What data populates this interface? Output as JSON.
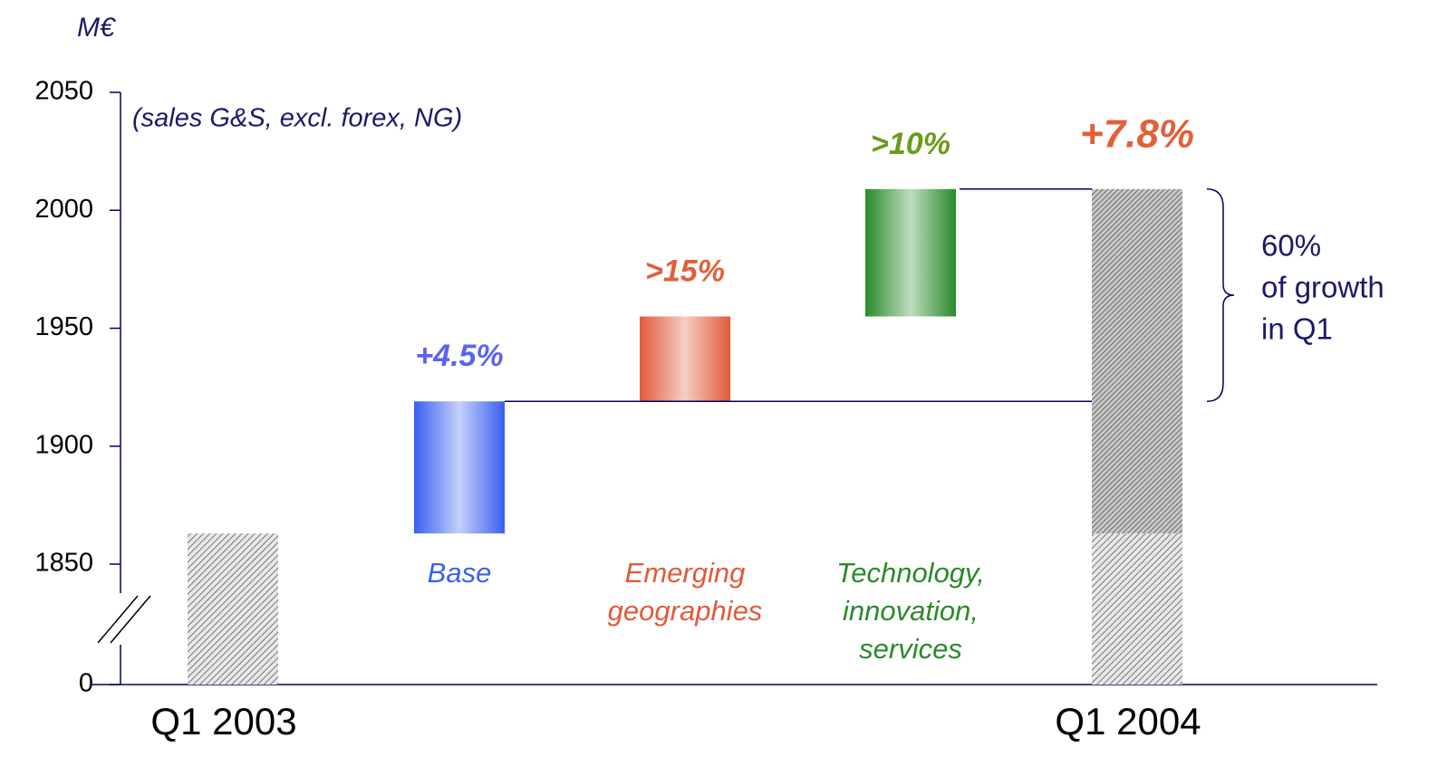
{
  "chart_data": {
    "type": "waterfall",
    "y_axis_label": "M€",
    "subtitle": "(sales G&S, excl. forex, NG)",
    "categories": [
      "Q1 2003",
      "Base",
      "Emerging geographies",
      "Technology, innovation, services",
      "Q1 2004"
    ],
    "kinds": [
      "total",
      "delta",
      "delta",
      "delta",
      "total"
    ],
    "values": [
      1863,
      56,
      36,
      54,
      2009
    ],
    "colors": [
      "#9a9a9a",
      "#3a5ff0",
      "#e05a3a",
      "#2a8a2a",
      "#9a9a9a"
    ],
    "growth_labels": [
      null,
      "+4.5%",
      ">15%",
      ">10%",
      "+7.8%"
    ],
    "growth_label_colors": [
      null,
      "#5a64f0",
      "#e0603a",
      "#6a9a1a",
      "#e0603a"
    ],
    "ylim": [
      1850,
      2050
    ],
    "yticks": [
      0,
      1850,
      1900,
      1950,
      2000,
      2050
    ],
    "axis_break": true,
    "brace_note": [
      "60%",
      "of growth",
      "in Q1"
    ]
  }
}
